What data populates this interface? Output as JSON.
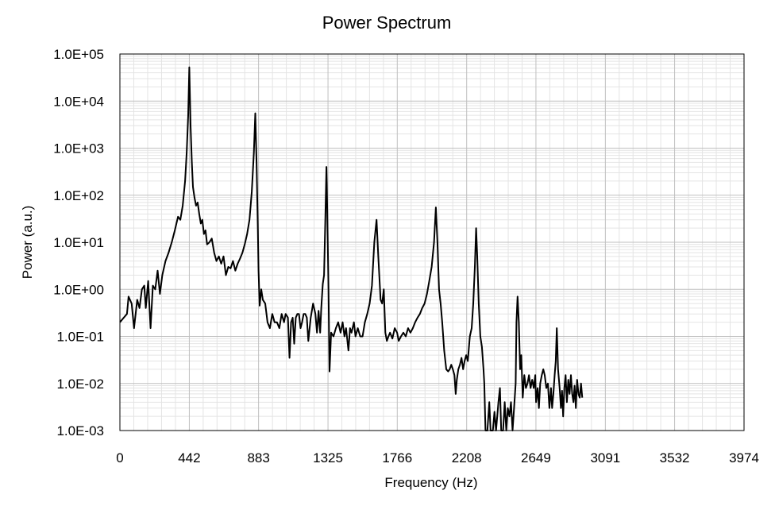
{
  "chart_data": {
    "type": "line",
    "title": "Power Spectrum",
    "xlabel": "Frequency (Hz)",
    "ylabel": "Power (a.u.)",
    "y_scale": "log",
    "xlim": [
      0,
      3974
    ],
    "ylim": [
      0.001,
      100000
    ],
    "x_ticks": [
      0,
      442,
      883,
      1325,
      1766,
      2208,
      2649,
      3091,
      3532,
      3974
    ],
    "y_ticks": [
      "1.0E-03",
      "1.0E-02",
      "1.0E-01",
      "1.0E+00",
      "1.0E+01",
      "1.0E+02",
      "1.0E+03",
      "1.0E+04",
      "1.0E+05"
    ],
    "grid": true,
    "line_color": "#000000",
    "series": [
      {
        "points": [
          [
            0,
            0.2
          ],
          [
            25,
            0.25
          ],
          [
            45,
            0.3
          ],
          [
            55,
            0.7
          ],
          [
            75,
            0.5
          ],
          [
            90,
            0.15
          ],
          [
            110,
            0.6
          ],
          [
            125,
            0.4
          ],
          [
            140,
            1.0
          ],
          [
            155,
            1.2
          ],
          [
            165,
            0.4
          ],
          [
            180,
            1.5
          ],
          [
            195,
            0.15
          ],
          [
            210,
            1.2
          ],
          [
            225,
            1.0
          ],
          [
            240,
            2.5
          ],
          [
            255,
            0.8
          ],
          [
            270,
            2.0
          ],
          [
            290,
            4.0
          ],
          [
            310,
            6.0
          ],
          [
            330,
            10.0
          ],
          [
            350,
            18.0
          ],
          [
            370,
            35.0
          ],
          [
            385,
            30.0
          ],
          [
            400,
            60.0
          ],
          [
            415,
            200.0
          ],
          [
            425,
            800.0
          ],
          [
            435,
            5000.0
          ],
          [
            442,
            52000.0
          ],
          [
            450,
            3000.0
          ],
          [
            458,
            500.0
          ],
          [
            465,
            150.0
          ],
          [
            475,
            90.0
          ],
          [
            485,
            60.0
          ],
          [
            495,
            70.0
          ],
          [
            505,
            40.0
          ],
          [
            515,
            25.0
          ],
          [
            525,
            30.0
          ],
          [
            535,
            15.0
          ],
          [
            545,
            18.0
          ],
          [
            555,
            9.0
          ],
          [
            570,
            10.0
          ],
          [
            585,
            12.0
          ],
          [
            600,
            6.0
          ],
          [
            615,
            4.0
          ],
          [
            630,
            5.0
          ],
          [
            645,
            3.5
          ],
          [
            660,
            5.0
          ],
          [
            675,
            2.0
          ],
          [
            690,
            3.0
          ],
          [
            705,
            2.8
          ],
          [
            720,
            4.0
          ],
          [
            735,
            2.5
          ],
          [
            750,
            3.5
          ],
          [
            765,
            4.5
          ],
          [
            780,
            6.0
          ],
          [
            795,
            9.0
          ],
          [
            810,
            15.0
          ],
          [
            825,
            30.0
          ],
          [
            840,
            120.0
          ],
          [
            853,
            800.0
          ],
          [
            862,
            5500.0
          ],
          [
            870,
            500.0
          ],
          [
            878,
            20.0
          ],
          [
            883,
            2.5
          ],
          [
            890,
            0.45
          ],
          [
            900,
            1.0
          ],
          [
            910,
            0.6
          ],
          [
            925,
            0.5
          ],
          [
            940,
            0.2
          ],
          [
            955,
            0.15
          ],
          [
            970,
            0.3
          ],
          [
            985,
            0.2
          ],
          [
            1000,
            0.2
          ],
          [
            1015,
            0.15
          ],
          [
            1030,
            0.3
          ],
          [
            1045,
            0.2
          ],
          [
            1055,
            0.3
          ],
          [
            1070,
            0.25
          ],
          [
            1080,
            0.035
          ],
          [
            1090,
            0.2
          ],
          [
            1100,
            0.25
          ],
          [
            1110,
            0.07
          ],
          [
            1120,
            0.25
          ],
          [
            1130,
            0.3
          ],
          [
            1140,
            0.3
          ],
          [
            1150,
            0.15
          ],
          [
            1160,
            0.2
          ],
          [
            1170,
            0.3
          ],
          [
            1180,
            0.3
          ],
          [
            1190,
            0.25
          ],
          [
            1200,
            0.08
          ],
          [
            1215,
            0.25
          ],
          [
            1230,
            0.5
          ],
          [
            1245,
            0.3
          ],
          [
            1255,
            0.12
          ],
          [
            1265,
            0.35
          ],
          [
            1275,
            0.12
          ],
          [
            1282,
            0.4
          ],
          [
            1292,
            1.3
          ],
          [
            1300,
            2.0
          ],
          [
            1308,
            30.0
          ],
          [
            1315,
            400.0
          ],
          [
            1320,
            50.0
          ],
          [
            1328,
            1.0
          ],
          [
            1335,
            0.018
          ],
          [
            1345,
            0.12
          ],
          [
            1360,
            0.1
          ],
          [
            1375,
            0.15
          ],
          [
            1390,
            0.2
          ],
          [
            1405,
            0.12
          ],
          [
            1418,
            0.2
          ],
          [
            1430,
            0.1
          ],
          [
            1440,
            0.15
          ],
          [
            1455,
            0.05
          ],
          [
            1465,
            0.15
          ],
          [
            1475,
            0.12
          ],
          [
            1490,
            0.2
          ],
          [
            1500,
            0.1
          ],
          [
            1515,
            0.15
          ],
          [
            1530,
            0.1
          ],
          [
            1545,
            0.1
          ],
          [
            1560,
            0.2
          ],
          [
            1575,
            0.3
          ],
          [
            1590,
            0.5
          ],
          [
            1605,
            1.2
          ],
          [
            1620,
            10.0
          ],
          [
            1634,
            30.0
          ],
          [
            1645,
            5.0
          ],
          [
            1660,
            0.6
          ],
          [
            1670,
            0.5
          ],
          [
            1680,
            1.0
          ],
          [
            1690,
            0.12
          ],
          [
            1700,
            0.08
          ],
          [
            1710,
            0.1
          ],
          [
            1720,
            0.12
          ],
          [
            1735,
            0.09
          ],
          [
            1750,
            0.15
          ],
          [
            1765,
            0.12
          ],
          [
            1775,
            0.08
          ],
          [
            1790,
            0.1
          ],
          [
            1805,
            0.12
          ],
          [
            1820,
            0.1
          ],
          [
            1835,
            0.15
          ],
          [
            1850,
            0.12
          ],
          [
            1865,
            0.15
          ],
          [
            1880,
            0.2
          ],
          [
            1895,
            0.25
          ],
          [
            1910,
            0.3
          ],
          [
            1925,
            0.4
          ],
          [
            1940,
            0.5
          ],
          [
            1955,
            0.8
          ],
          [
            1970,
            1.5
          ],
          [
            1985,
            3.0
          ],
          [
            2000,
            10.0
          ],
          [
            2012,
            55.0
          ],
          [
            2022,
            10.0
          ],
          [
            2032,
            1.0
          ],
          [
            2042,
            0.5
          ],
          [
            2052,
            0.2
          ],
          [
            2065,
            0.05
          ],
          [
            2078,
            0.02
          ],
          [
            2090,
            0.018
          ],
          [
            2100,
            0.02
          ],
          [
            2110,
            0.025
          ],
          [
            2120,
            0.02
          ],
          [
            2130,
            0.015
          ],
          [
            2138,
            0.006
          ],
          [
            2145,
            0.012
          ],
          [
            2155,
            0.02
          ],
          [
            2165,
            0.025
          ],
          [
            2175,
            0.035
          ],
          [
            2185,
            0.02
          ],
          [
            2195,
            0.03
          ],
          [
            2205,
            0.04
          ],
          [
            2215,
            0.03
          ],
          [
            2228,
            0.1
          ],
          [
            2240,
            0.15
          ],
          [
            2250,
            0.5
          ],
          [
            2260,
            3.0
          ],
          [
            2268,
            20.0
          ],
          [
            2275,
            5.0
          ],
          [
            2285,
            0.5
          ],
          [
            2295,
            0.1
          ],
          [
            2305,
            0.06
          ],
          [
            2315,
            0.02
          ],
          [
            2320,
            0.01
          ],
          [
            2328,
            0.001
          ],
          [
            2340,
            0.001
          ],
          [
            2352,
            0.004
          ],
          [
            2360,
            0.001
          ],
          [
            2375,
            0.001
          ],
          [
            2385,
            0.0025
          ],
          [
            2395,
            0.001
          ],
          [
            2410,
            0.004
          ],
          [
            2420,
            0.008
          ],
          [
            2428,
            0.001
          ],
          [
            2440,
            0.001
          ],
          [
            2450,
            0.004
          ],
          [
            2460,
            0.001
          ],
          [
            2470,
            0.003
          ],
          [
            2480,
            0.002
          ],
          [
            2490,
            0.004
          ],
          [
            2500,
            0.001
          ],
          [
            2510,
            0.003
          ],
          [
            2520,
            0.01
          ],
          [
            2525,
            0.2
          ],
          [
            2532,
            0.7
          ],
          [
            2540,
            0.2
          ],
          [
            2548,
            0.02
          ],
          [
            2556,
            0.04
          ],
          [
            2565,
            0.005
          ],
          [
            2575,
            0.015
          ],
          [
            2585,
            0.008
          ],
          [
            2595,
            0.01
          ],
          [
            2605,
            0.015
          ],
          [
            2615,
            0.008
          ],
          [
            2625,
            0.012
          ],
          [
            2635,
            0.008
          ],
          [
            2645,
            0.015
          ],
          [
            2650,
            0.004
          ],
          [
            2660,
            0.008
          ],
          [
            2668,
            0.003
          ],
          [
            2676,
            0.01
          ],
          [
            2686,
            0.015
          ],
          [
            2696,
            0.02
          ],
          [
            2705,
            0.015
          ],
          [
            2715,
            0.008
          ],
          [
            2725,
            0.01
          ],
          [
            2735,
            0.003
          ],
          [
            2745,
            0.008
          ],
          [
            2752,
            0.003
          ],
          [
            2760,
            0.006
          ],
          [
            2768,
            0.015
          ],
          [
            2775,
            0.03
          ],
          [
            2782,
            0.15
          ],
          [
            2790,
            0.02
          ],
          [
            2800,
            0.008
          ],
          [
            2808,
            0.003
          ],
          [
            2815,
            0.007
          ],
          [
            2822,
            0.002
          ],
          [
            2830,
            0.008
          ],
          [
            2838,
            0.015
          ],
          [
            2846,
            0.004
          ],
          [
            2855,
            0.012
          ],
          [
            2863,
            0.006
          ],
          [
            2872,
            0.015
          ],
          [
            2880,
            0.006
          ],
          [
            2888,
            0.004
          ],
          [
            2895,
            0.009
          ],
          [
            2903,
            0.003
          ],
          [
            2911,
            0.012
          ],
          [
            2920,
            0.006
          ],
          [
            2928,
            0.005
          ],
          [
            2936,
            0.01
          ],
          [
            2944,
            0.005
          ]
        ]
      }
    ]
  }
}
